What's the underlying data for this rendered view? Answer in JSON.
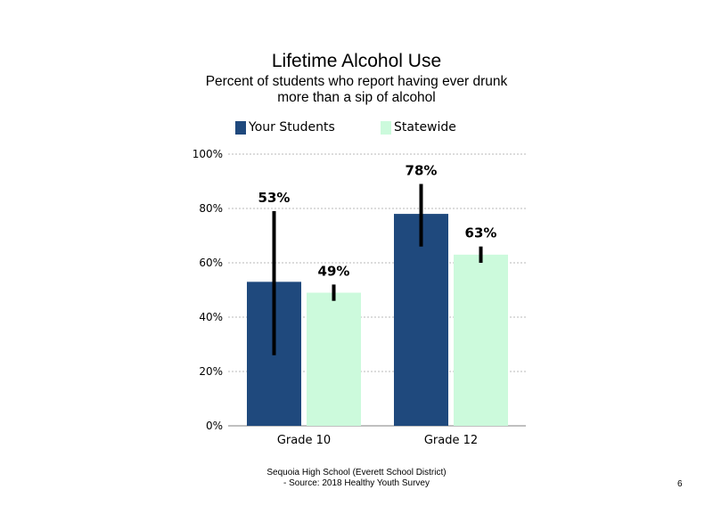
{
  "chart_data": {
    "type": "bar",
    "title": "Lifetime Alcohol Use",
    "subtitle_lines": [
      "Percent of students who report having ever drunk",
      "more than a sip of alcohol"
    ],
    "categories": [
      "Grade 10",
      "Grade 12"
    ],
    "series": [
      {
        "name": "Your Students",
        "color": "#1f497d",
        "values": [
          53,
          78
        ],
        "labels": [
          "53%",
          "78%"
        ],
        "error_low": [
          26,
          66
        ],
        "error_high": [
          79,
          89
        ]
      },
      {
        "name": "Statewide",
        "color": "#ccfadc",
        "values": [
          49,
          63
        ],
        "labels": [
          "49%",
          "63%"
        ],
        "error_low": [
          46,
          60
        ],
        "error_high": [
          52,
          66
        ]
      }
    ],
    "ylim": [
      0,
      100
    ],
    "yticks": [
      0,
      20,
      40,
      60,
      80,
      100
    ],
    "ytick_labels": [
      "0%",
      "20%",
      "40%",
      "60%",
      "80%",
      "100%"
    ],
    "grid": true,
    "legend_position": "top-center"
  },
  "footer": {
    "line1": "Sequoia High School (Everett School District)",
    "line2": "- Source: 2018 Healthy Youth Survey"
  },
  "page_number": "6"
}
